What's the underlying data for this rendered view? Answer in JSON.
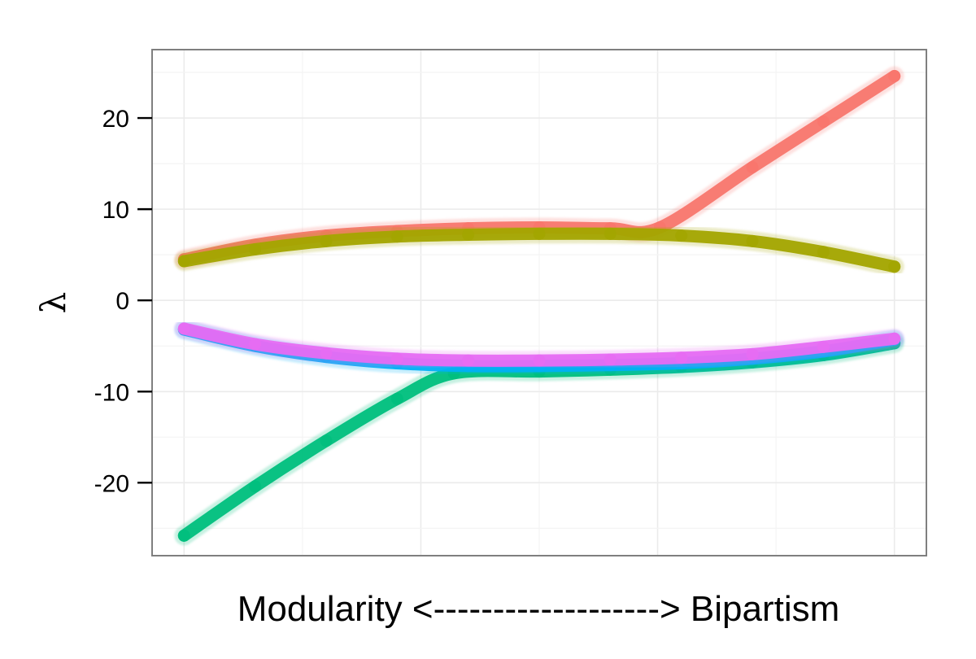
{
  "chart_data": {
    "type": "scatter",
    "xlabel": "Modularity <-------------------> Bipartism",
    "ylabel": "λ",
    "xlim": [
      -0.045,
      1.045
    ],
    "ylim": [
      -28,
      27.5
    ],
    "y_ticks": [
      -20,
      -10,
      0,
      10,
      20
    ],
    "y_tick_labels": [
      "-20",
      "-10",
      "0",
      "10",
      "20"
    ],
    "x_tick_labels": [],
    "grid": true,
    "legend": "none",
    "colors": [
      "#F8766D",
      "#A3A500",
      "#00BF7D",
      "#00B0F6",
      "#E76BF3"
    ],
    "series": [
      {
        "color": "#F8766D",
        "x": [
          0,
          0.1,
          0.2,
          0.3,
          0.4,
          0.5,
          0.6,
          0.67,
          0.8,
          0.9,
          1.0
        ],
        "y": [
          4.5,
          6.1,
          7.1,
          7.6,
          7.9,
          8.0,
          7.9,
          8.0,
          14.6,
          19.6,
          24.6
        ]
      },
      {
        "color": "#A3A500",
        "x": [
          0,
          0.1,
          0.2,
          0.3,
          0.4,
          0.5,
          0.6,
          0.7,
          0.8,
          0.9,
          1.0
        ],
        "y": [
          4.3,
          5.6,
          6.5,
          7.0,
          7.2,
          7.3,
          7.3,
          7.1,
          6.5,
          5.3,
          3.7
        ]
      },
      {
        "color": "#00BF7D",
        "x": [
          0,
          0.1,
          0.2,
          0.3,
          0.38,
          0.5,
          0.6,
          0.7,
          0.8,
          0.9,
          1.0
        ],
        "y": [
          -25.8,
          -20.4,
          -15.4,
          -10.8,
          -8.0,
          -7.8,
          -7.6,
          -7.3,
          -6.8,
          -6.0,
          -4.7
        ]
      },
      {
        "color": "#00B0F6",
        "x": [
          0,
          0.1,
          0.2,
          0.3,
          0.4,
          0.5,
          0.6,
          0.7,
          0.8,
          0.9,
          1.0
        ],
        "y": [
          -3.2,
          -5.0,
          -6.2,
          -6.9,
          -7.2,
          -7.2,
          -7.1,
          -6.9,
          -6.4,
          -5.6,
          -4.3
        ]
      },
      {
        "color": "#E76BF3",
        "x": [
          0,
          0.1,
          0.2,
          0.3,
          0.4,
          0.5,
          0.6,
          0.7,
          0.8,
          0.9,
          1.0
        ],
        "y": [
          -3.1,
          -4.8,
          -5.8,
          -6.4,
          -6.6,
          -6.6,
          -6.5,
          -6.3,
          -5.9,
          -5.1,
          -4.2
        ]
      }
    ]
  }
}
